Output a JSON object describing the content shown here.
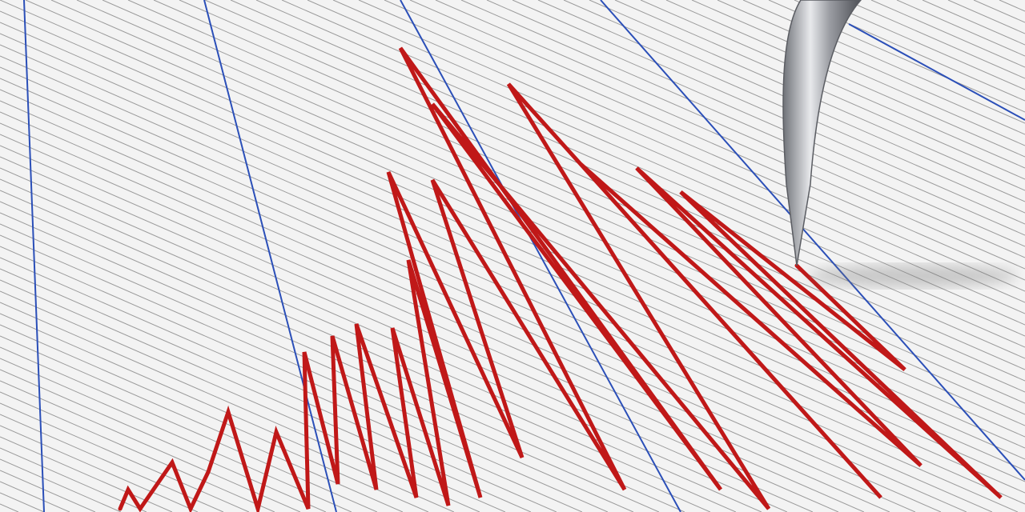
{
  "scene": {
    "subject": "seismograph",
    "colors": {
      "paper": "#f3f3f3",
      "grid_line": "#9a9a9a",
      "major_line": "#2b4fb8",
      "trace": "#c01818",
      "needle": "#a8aab0"
    },
    "icons": [
      "seismograph-needle-icon"
    ]
  }
}
